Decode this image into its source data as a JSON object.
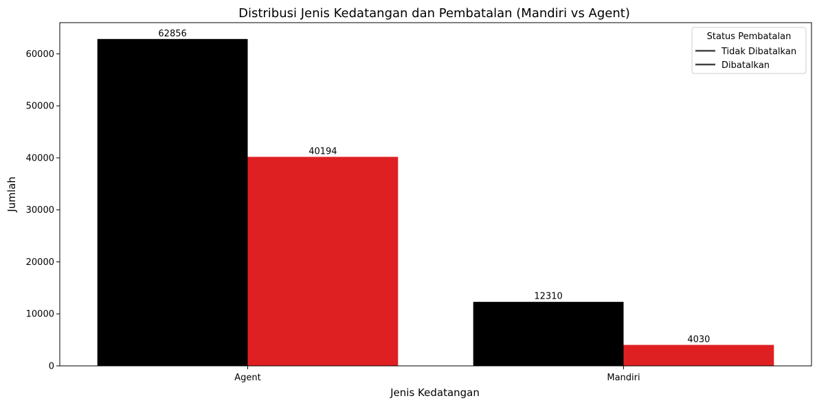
{
  "chart_data": {
    "type": "bar",
    "title": "Distribusi Jenis Kedatangan dan Pembatalan (Mandiri vs Agent)",
    "xlabel": "Jenis Kedatangan",
    "ylabel": "Jumlah",
    "categories": [
      "Agent",
      "Mandiri"
    ],
    "series": [
      {
        "name": "Tidak Dibatalkan",
        "color": "#000000",
        "values": [
          62856,
          12310
        ]
      },
      {
        "name": "Dibatalkan",
        "color": "#df2022",
        "values": [
          40194,
          4030
        ]
      }
    ],
    "ylim": [
      0,
      66000
    ],
    "yticks": [
      0,
      10000,
      20000,
      30000,
      40000,
      50000,
      60000
    ],
    "grid": false,
    "legend": {
      "title": "Status Pembatalan",
      "placement": "top-right",
      "line_color": "#404040",
      "entries": [
        "Tidak Dibatalkan",
        "Dibatalkan"
      ]
    }
  }
}
